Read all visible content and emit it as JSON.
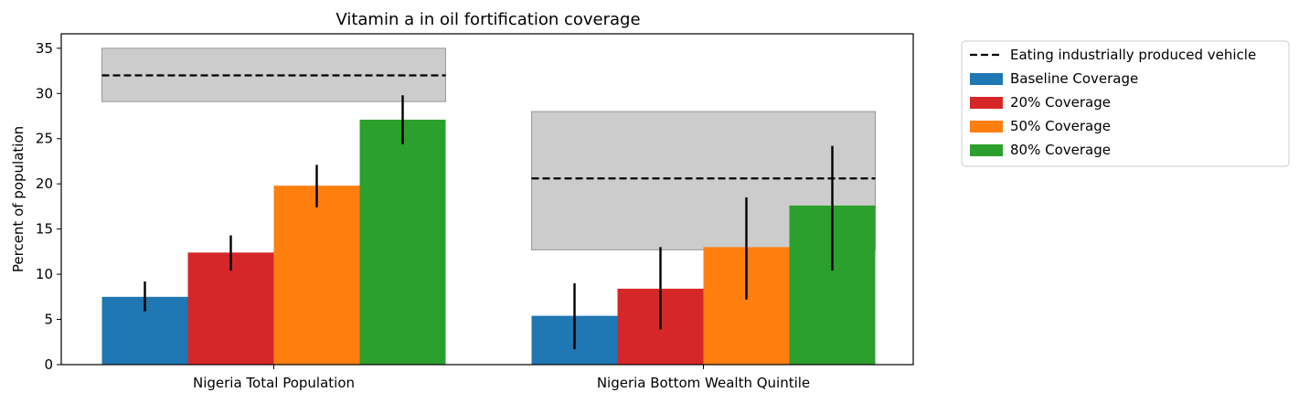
{
  "chart_data": {
    "type": "bar",
    "title": "Vitamin a in oil fortification coverage",
    "xlabel": "",
    "ylabel": "Percent of population",
    "ylim": [
      0,
      36.6
    ],
    "yticks": [
      0,
      5,
      10,
      15,
      20,
      25,
      30,
      35
    ],
    "categories": [
      "Nigeria Total Population",
      "Nigeria Bottom Wealth Quintile"
    ],
    "series": [
      {
        "name": "Baseline Coverage",
        "color": "#1f77b4",
        "values": [
          7.5,
          5.4
        ],
        "err_low": [
          5.9,
          1.7
        ],
        "err_high": [
          9.2,
          9.0
        ]
      },
      {
        "name": "20% Coverage",
        "color": "#d62728",
        "values": [
          12.4,
          8.4
        ],
        "err_low": [
          10.4,
          3.9
        ],
        "err_high": [
          14.3,
          13.0
        ]
      },
      {
        "name": "50% Coverage",
        "color": "#ff7f0e",
        "values": [
          19.8,
          13.0
        ],
        "err_low": [
          17.4,
          7.2
        ],
        "err_high": [
          22.1,
          18.5
        ]
      },
      {
        "name": "80% Coverage",
        "color": "#2ca02c",
        "values": [
          27.1,
          17.6
        ],
        "err_low": [
          24.4,
          10.4
        ],
        "err_high": [
          29.8,
          24.2
        ]
      }
    ],
    "reference": {
      "name": "Eating industrially produced vehicle",
      "values": [
        32.0,
        20.6
      ],
      "lower": [
        29.1,
        12.7
      ],
      "upper": [
        35.0,
        28.0
      ],
      "band_color": "#cccccc"
    },
    "grid": false,
    "legend_position": "outside-right"
  }
}
